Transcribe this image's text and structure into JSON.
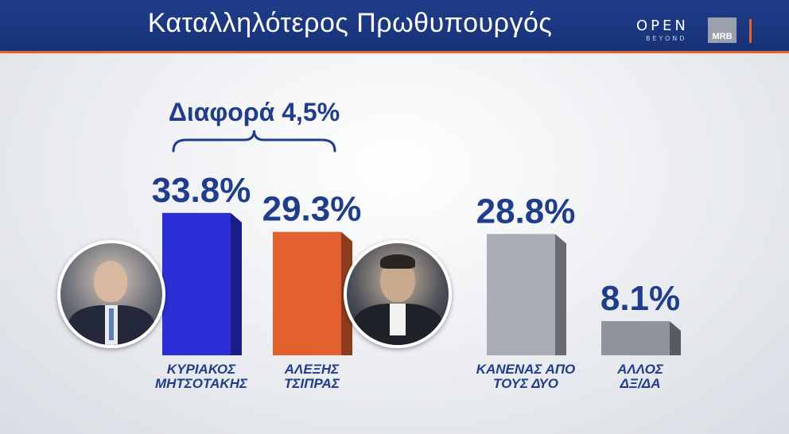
{
  "header": {
    "title": "Καταλληλότερος Πρωθυπουργός",
    "logo_open": "OPEN",
    "logo_open_sub": "BEYOND",
    "logo_mrb": "MRB"
  },
  "colors": {
    "header_bg": "#1c3a85",
    "accent": "#e8612a",
    "label_text": "#1f3d8a"
  },
  "chart_data": {
    "type": "bar",
    "title": "Καταλληλότερος Πρωθυπουργός",
    "categories": [
      [
        "ΚΥΡΙΑΚΟΣ",
        "ΜΗΤΣΟΤΑΚΗΣ"
      ],
      [
        "ΑΛΕΞΗΣ",
        "ΤΣΙΠΡΑΣ"
      ],
      [
        "ΚΑΝΕΝΑΣ ΑΠΟ",
        "ΤΟΥΣ ΔΥΟ"
      ],
      [
        "ΑΛΛΟΣ",
        "ΔΞ/ΔΑ"
      ]
    ],
    "values": [
      33.8,
      29.3,
      28.8,
      8.1
    ],
    "value_labels": [
      "33.8%",
      "29.3%",
      "28.8%",
      "8.1%"
    ],
    "bar_colors": [
      "#2a2fd6",
      "#e2612f",
      "#a9adb6",
      "#8e939c"
    ],
    "annotation": "Διαφορά 4,5%",
    "photos": [
      "photo-mitsotakis",
      "photo-tsipras"
    ],
    "ylim": [
      0,
      40
    ]
  }
}
